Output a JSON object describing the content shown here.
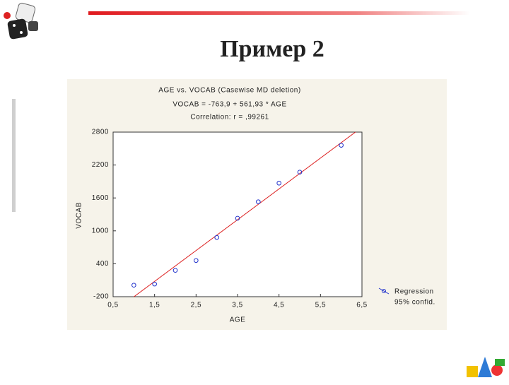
{
  "slide_title": "Пример 2",
  "chart_data": {
    "type": "scatter",
    "title": "AGE vs. VOCAB (Casewise MD deletion)",
    "subtitles": [
      "VOCAB = -763,9 + 561,93 * AGE",
      "Correlation: r = ,99261"
    ],
    "x_label": "AGE",
    "y_label": "VOCAB",
    "x": [
      1.0,
      1.5,
      2.0,
      2.5,
      3.0,
      3.5,
      4.0,
      4.5,
      5.0,
      6.0
    ],
    "series": [
      {
        "name": "Regression",
        "color": "#2233cc",
        "values": [
          10,
          30,
          280,
          460,
          880,
          1230,
          1530,
          1870,
          2070,
          2560
        ]
      }
    ],
    "regression": {
      "intercept": -763.9,
      "slope": 561.93,
      "color": "#dd2222"
    },
    "legend_extra": "95% confid.",
    "xlim": [
      0.5,
      6.5
    ],
    "xticks": [
      {
        "value": 0.5,
        "label": "0,5"
      },
      {
        "value": 1.5,
        "label": "1,5"
      },
      {
        "value": 2.5,
        "label": "2,5"
      },
      {
        "value": 3.5,
        "label": "3,5"
      },
      {
        "value": 4.5,
        "label": "4,5"
      },
      {
        "value": 5.5,
        "label": "5,5"
      },
      {
        "value": 6.5,
        "label": "6,5"
      }
    ],
    "ylim": [
      -200,
      2800
    ],
    "yticks": [
      -200,
      400,
      1000,
      1600,
      2200,
      2800
    ],
    "grid": false
  }
}
